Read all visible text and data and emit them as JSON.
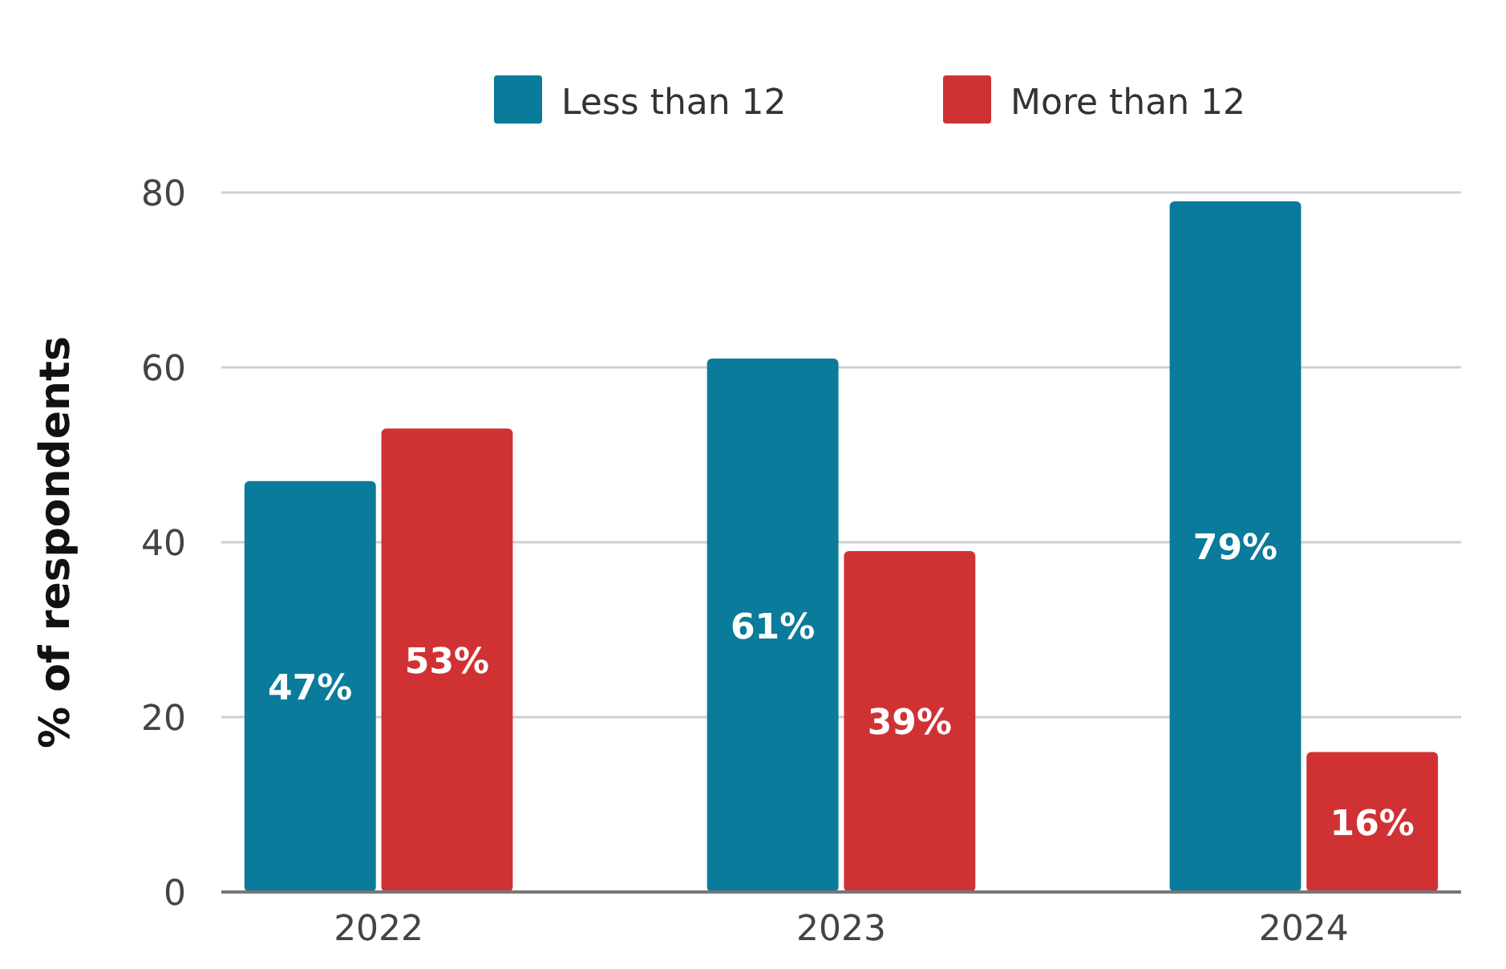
{
  "chart_data": {
    "type": "bar",
    "ylabel": "% of respondents",
    "categories": [
      "2022",
      "2023",
      "2024"
    ],
    "series": [
      {
        "name": "Less than 12",
        "color": "#0a7b9a",
        "values": [
          47,
          61,
          79
        ],
        "value_labels": [
          "47%",
          "61%",
          "79%"
        ]
      },
      {
        "name": "More than 12",
        "color": "#d03234",
        "values": [
          53,
          39,
          16
        ],
        "value_labels": [
          "53%",
          "39%",
          "16%"
        ]
      }
    ],
    "ylim": [
      0,
      80
    ],
    "yticks": [
      0,
      20,
      40,
      60,
      80
    ],
    "grid": "y",
    "legend": "top"
  }
}
